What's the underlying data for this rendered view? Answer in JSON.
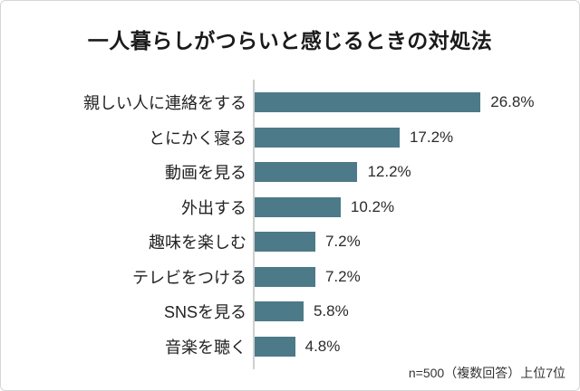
{
  "card": {
    "title": "一人暮らしがつらいと感じるときの対処法",
    "footnote": "n=500（複数回答）上位7位"
  },
  "chart_data": {
    "type": "bar",
    "orientation": "horizontal",
    "title": "一人暮らしがつらいと感じるときの対処法",
    "categories": [
      "親しい人に連絡をする",
      "とにかく寝る",
      "動画を見る",
      "外出する",
      "趣味を楽しむ",
      "テレビをつける",
      "SNSを見る",
      "音楽を聴く"
    ],
    "values": [
      26.8,
      17.2,
      12.2,
      10.2,
      7.2,
      7.2,
      5.8,
      4.8
    ],
    "value_labels": [
      "26.8%",
      "17.2%",
      "12.2%",
      "10.2%",
      "7.2%",
      "7.2%",
      "5.8%",
      "4.8%"
    ],
    "xlabel": "",
    "ylabel": "",
    "xlim": [
      0,
      30
    ],
    "grid": false,
    "legend": "none",
    "bar_color": "#4d7a88",
    "axis_line_color": "#d0d0d0",
    "note": "n=500（複数回答）上位7位"
  }
}
